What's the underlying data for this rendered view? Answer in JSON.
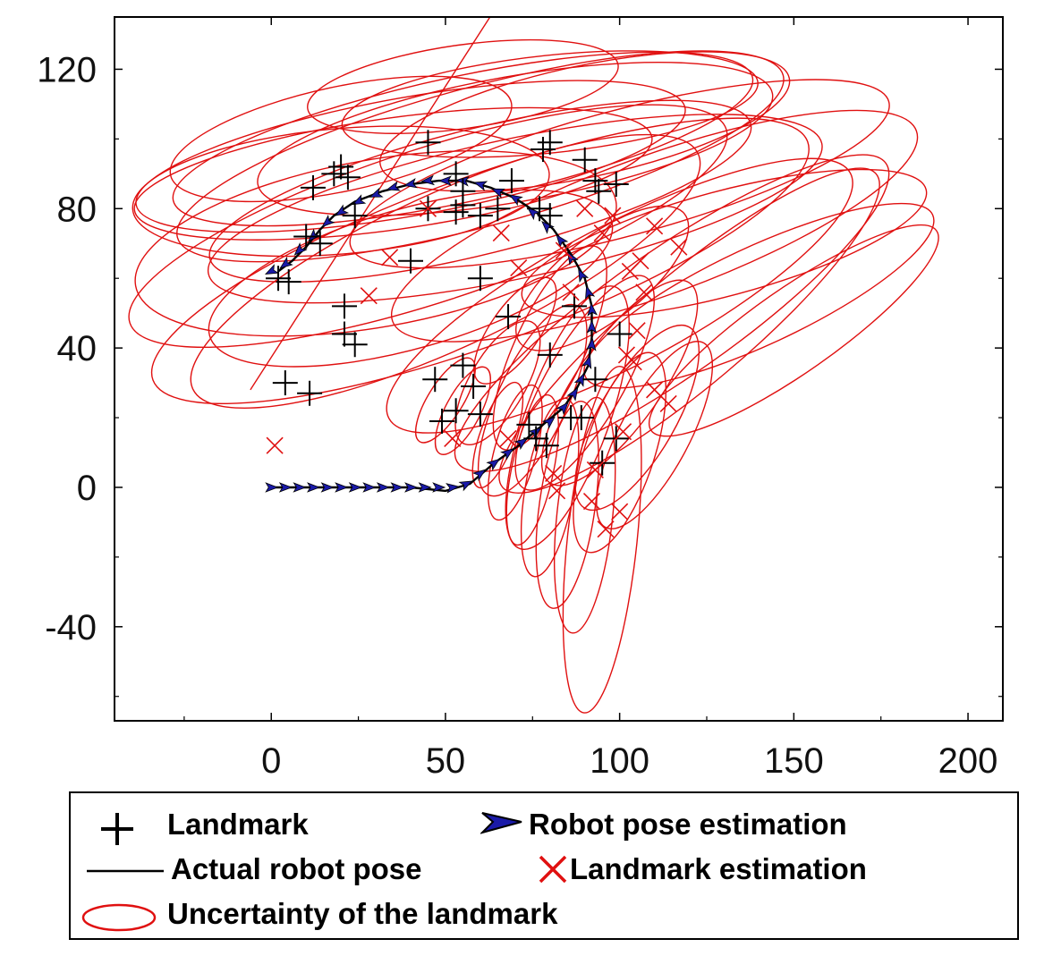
{
  "chart_data": {
    "type": "scatter",
    "title": "",
    "xlabel": "",
    "ylabel": "",
    "xlim": [
      -45,
      210
    ],
    "ylim": [
      -67,
      135
    ],
    "x_ticks": [
      0,
      50,
      100,
      150,
      200
    ],
    "y_ticks": [
      -40,
      0,
      40,
      80,
      120
    ],
    "x_tick_labels": [
      "0",
      "50",
      "100",
      "150",
      "200"
    ],
    "y_tick_labels": [
      "-40",
      "0",
      "40",
      "80",
      "120"
    ],
    "grid": false,
    "legend_position": "below",
    "colors": {
      "landmark": "#000000",
      "path": "#000000",
      "pose": "#1a1aa8",
      "estimate": "#e01010",
      "ellipse": "#e01010"
    },
    "legend": [
      {
        "key": "landmark",
        "label": "Landmark"
      },
      {
        "key": "pose",
        "label": "Robot pose estimation"
      },
      {
        "key": "path",
        "label": "Actual robot pose"
      },
      {
        "key": "estimate",
        "label": "Landmark estimation"
      },
      {
        "key": "ellipse",
        "label": "Uncertainty of the landmark"
      }
    ],
    "landmarks": [
      [
        2,
        60
      ],
      [
        5,
        59
      ],
      [
        10,
        72
      ],
      [
        14,
        70
      ],
      [
        12,
        86
      ],
      [
        18,
        90
      ],
      [
        20,
        92
      ],
      [
        22,
        89
      ],
      [
        24,
        78
      ],
      [
        21,
        52
      ],
      [
        21,
        44
      ],
      [
        24,
        41
      ],
      [
        4,
        30
      ],
      [
        11,
        27
      ],
      [
        40,
        65
      ],
      [
        45,
        80
      ],
      [
        45,
        99
      ],
      [
        53,
        90
      ],
      [
        55,
        81
      ],
      [
        53,
        79
      ],
      [
        55,
        85
      ],
      [
        60,
        60
      ],
      [
        60,
        78
      ],
      [
        65,
        80
      ],
      [
        69,
        88
      ],
      [
        68,
        49
      ],
      [
        78,
        97
      ],
      [
        80,
        99
      ],
      [
        77,
        80
      ],
      [
        80,
        78
      ],
      [
        80,
        38
      ],
      [
        87,
        52
      ],
      [
        90,
        94
      ],
      [
        93,
        88
      ],
      [
        94,
        85
      ],
      [
        99,
        87
      ],
      [
        100,
        44
      ],
      [
        93,
        31
      ],
      [
        95,
        7
      ],
      [
        99,
        14
      ],
      [
        47,
        31
      ],
      [
        49,
        19
      ],
      [
        53,
        22
      ],
      [
        55,
        35
      ],
      [
        58,
        29
      ],
      [
        60,
        21
      ],
      [
        74,
        18
      ],
      [
        76,
        14
      ],
      [
        86,
        20
      ],
      [
        89,
        20
      ],
      [
        79,
        12
      ]
    ],
    "landmark_estimates": [
      [
        1,
        12
      ],
      [
        28,
        55
      ],
      [
        34,
        66
      ],
      [
        45,
        80
      ],
      [
        52,
        14
      ],
      [
        68,
        14
      ],
      [
        81,
        4
      ],
      [
        82,
        -1
      ],
      [
        93,
        5
      ],
      [
        96,
        -12
      ],
      [
        100,
        -7
      ],
      [
        101,
        16
      ],
      [
        102,
        38
      ],
      [
        104,
        36
      ],
      [
        103,
        62
      ],
      [
        107,
        56
      ],
      [
        110,
        75
      ],
      [
        117,
        69
      ],
      [
        114,
        24
      ],
      [
        86,
        56
      ],
      [
        95,
        73
      ],
      [
        90,
        80
      ],
      [
        84,
        68
      ],
      [
        106,
        65
      ],
      [
        71,
        63
      ],
      [
        98,
        78
      ],
      [
        105,
        45
      ],
      [
        110,
        28
      ],
      [
        92,
        -4
      ],
      [
        66,
        73
      ]
    ],
    "robot_path": [
      [
        0,
        0
      ],
      [
        10,
        0
      ],
      [
        20,
        0
      ],
      [
        30,
        0
      ],
      [
        40,
        0
      ],
      [
        50,
        -1
      ],
      [
        57,
        1
      ],
      [
        64,
        7
      ],
      [
        71,
        12
      ],
      [
        78,
        18
      ],
      [
        84,
        23
      ],
      [
        88,
        29
      ],
      [
        91,
        35
      ],
      [
        92,
        43
      ],
      [
        92,
        52
      ],
      [
        90,
        60
      ],
      [
        86,
        67
      ],
      [
        81,
        74
      ],
      [
        76,
        79
      ],
      [
        70,
        83
      ],
      [
        63,
        86
      ],
      [
        56,
        88
      ],
      [
        48,
        88
      ],
      [
        40,
        87
      ],
      [
        32,
        85
      ],
      [
        24,
        82
      ],
      [
        18,
        78
      ],
      [
        14,
        74
      ],
      [
        10,
        69
      ],
      [
        6,
        65
      ],
      [
        2,
        62
      ]
    ],
    "pose_markers": [
      [
        0,
        0
      ],
      [
        4,
        0
      ],
      [
        8,
        0
      ],
      [
        12,
        0
      ],
      [
        16,
        0
      ],
      [
        20,
        0
      ],
      [
        24,
        0
      ],
      [
        28,
        0
      ],
      [
        32,
        0
      ],
      [
        36,
        0
      ],
      [
        40,
        0
      ],
      [
        44,
        0
      ],
      [
        48,
        0
      ],
      [
        52,
        0
      ],
      [
        56,
        1
      ],
      [
        60,
        4
      ],
      [
        64,
        7
      ],
      [
        68,
        10
      ],
      [
        72,
        13
      ],
      [
        76,
        16
      ],
      [
        80,
        19
      ],
      [
        84,
        23
      ],
      [
        87,
        27
      ],
      [
        89,
        31
      ],
      [
        91,
        36
      ],
      [
        92,
        41
      ],
      [
        92,
        46
      ],
      [
        92,
        51
      ],
      [
        91,
        56
      ],
      [
        89,
        61
      ],
      [
        86,
        66
      ],
      [
        83,
        71
      ],
      [
        79,
        75
      ],
      [
        75,
        79
      ],
      [
        70,
        83
      ],
      [
        65,
        85
      ],
      [
        60,
        87
      ],
      [
        55,
        88
      ],
      [
        50,
        88
      ],
      [
        45,
        88
      ],
      [
        40,
        87
      ],
      [
        35,
        86
      ],
      [
        30,
        84
      ],
      [
        25,
        82
      ],
      [
        20,
        79
      ],
      [
        16,
        76
      ],
      [
        12,
        72
      ],
      [
        8,
        68
      ],
      [
        4,
        64
      ],
      [
        0,
        62
      ]
    ],
    "ellipses": [
      [
        35,
        90,
        75,
        16,
        -8
      ],
      [
        40,
        95,
        80,
        17,
        -10
      ],
      [
        55,
        100,
        85,
        18,
        -12
      ],
      [
        60,
        95,
        90,
        20,
        -15
      ],
      [
        20,
        85,
        60,
        18,
        -5
      ],
      [
        45,
        75,
        90,
        22,
        -18
      ],
      [
        60,
        65,
        100,
        24,
        -20
      ],
      [
        70,
        80,
        90,
        20,
        -12
      ],
      [
        70,
        100,
        75,
        18,
        -10
      ],
      [
        90,
        105,
        60,
        16,
        -12
      ],
      [
        100,
        90,
        80,
        18,
        -15
      ],
      [
        110,
        75,
        80,
        20,
        -20
      ],
      [
        30,
        70,
        70,
        24,
        -10
      ],
      [
        50,
        62,
        80,
        22,
        -25
      ],
      [
        100,
        55,
        75,
        20,
        -28
      ],
      [
        115,
        50,
        75,
        18,
        -35
      ],
      [
        120,
        45,
        70,
        16,
        -40
      ],
      [
        80,
        110,
        60,
        14,
        -6
      ],
      [
        55,
        115,
        45,
        12,
        -8
      ],
      [
        20,
        100,
        50,
        15,
        -12
      ],
      [
        130,
        70,
        60,
        15,
        -15
      ],
      [
        140,
        55,
        55,
        14,
        -25
      ],
      [
        150,
        45,
        50,
        12,
        -35
      ],
      [
        60,
        85,
        80,
        18,
        -14
      ],
      [
        40,
        60,
        60,
        20,
        -16
      ],
      [
        50,
        25,
        14,
        5,
        -58
      ],
      [
        55,
        22,
        14,
        5,
        -62
      ],
      [
        65,
        15,
        16,
        5,
        -70
      ],
      [
        70,
        10,
        20,
        6,
        -75
      ],
      [
        75,
        5,
        22,
        6,
        -78
      ],
      [
        80,
        0,
        26,
        7,
        -80
      ],
      [
        85,
        -5,
        30,
        8,
        -82
      ],
      [
        90,
        -8,
        34,
        8,
        -84
      ],
      [
        100,
        10,
        30,
        10,
        -72
      ],
      [
        110,
        15,
        30,
        10,
        -62
      ],
      [
        95,
        -15,
        50,
        10,
        -84
      ],
      [
        80,
        40,
        32,
        10,
        -65
      ],
      [
        90,
        30,
        35,
        11,
        -60
      ],
      [
        100,
        30,
        35,
        12,
        -55
      ],
      [
        105,
        20,
        30,
        11,
        -60
      ],
      [
        85,
        20,
        40,
        12,
        -70
      ],
      [
        75,
        25,
        30,
        10,
        -65
      ],
      [
        65,
        30,
        20,
        8,
        -60
      ],
      [
        70,
        45,
        18,
        7,
        -55
      ],
      [
        95,
        60,
        30,
        12,
        -38
      ]
    ],
    "stray_line": [
      [
        -6,
        28
      ],
      [
        66,
        140
      ]
    ]
  }
}
